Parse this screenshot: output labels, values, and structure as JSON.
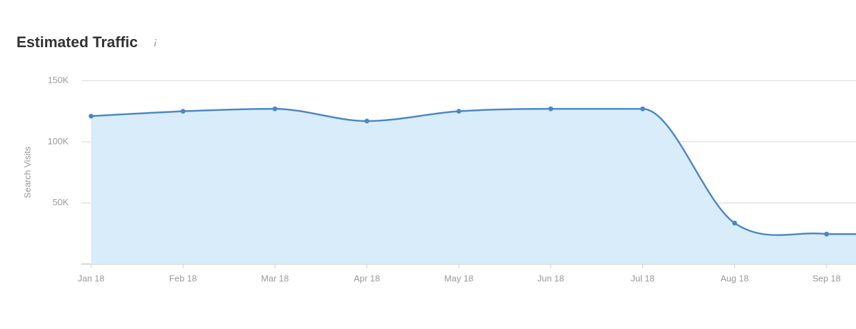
{
  "chart_data": {
    "type": "area",
    "title": "Estimated Traffic",
    "y_label": "Search Visits",
    "categories": [
      "Jan 18",
      "Feb 18",
      "Mar 18",
      "Apr 18",
      "May 18",
      "Jun 18",
      "Jul 18",
      "Aug 18",
      "Sep 18"
    ],
    "series": [
      {
        "name": "Search Visits",
        "color": "#4a86c8",
        "fill": "#d8ecfa",
        "values": [
          121000,
          125000,
          127000,
          117000,
          125000,
          127000,
          127000,
          33500,
          24500
        ]
      }
    ],
    "ylim": [
      0,
      150000
    ],
    "yticks": [
      {
        "value": 50000,
        "label": "50K"
      },
      {
        "value": 100000,
        "label": "100K"
      },
      {
        "value": 150000,
        "label": "150K"
      }
    ],
    "grid": true
  }
}
